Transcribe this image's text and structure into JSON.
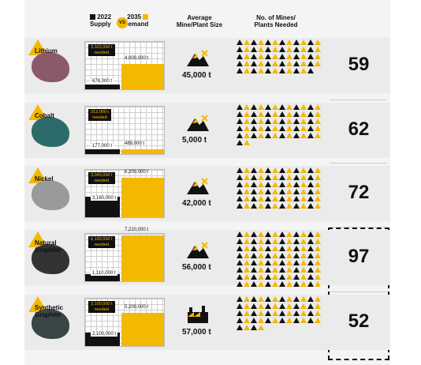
{
  "header": {
    "year_supply": "2022",
    "supply": "Supply",
    "vs": "VS",
    "year_demand": "2035",
    "demand": "Demand",
    "avg_size_line1": "Average",
    "avg_size_line2": "Mine/Plant Size",
    "mines_line1": "No. of Mines/",
    "mines_line2": "Plants Needed"
  },
  "colors": {
    "supply": "#111111",
    "demand": "#f5b800",
    "background": "#ebebeb"
  },
  "chart_data": {
    "type": "bar",
    "categories": [
      "Lithium",
      "Cobalt",
      "Nickel",
      "Natural Graphite",
      "Synthetic Graphite"
    ],
    "series": [
      {
        "name": "2022 Supply",
        "values": [
          678000,
          177000,
          3160000,
          1110000,
          2100000
        ]
      },
      {
        "name": "2035 Demand",
        "values": [
          4000000,
          489000,
          6200000,
          7210000,
          5200000
        ]
      }
    ],
    "needed": [
      3322000,
      312000,
      3040000,
      6100000,
      3100000
    ],
    "avg_mine_size": [
      45000,
      5000,
      42000,
      56000,
      57000
    ],
    "mines_needed": [
      59,
      62,
      72,
      97,
      52
    ]
  },
  "rows": [
    {
      "mineral": "Lithium",
      "needed": "3,322,000 t",
      "needed_word": "needed",
      "supply": "678,000 t",
      "demand": "4,000,000 t",
      "size": "45,000 t",
      "count": "59",
      "icon": "mine-icon",
      "rock": "#8a5a6a"
    },
    {
      "mineral": "Cobalt",
      "needed": "312,000 t",
      "needed_word": "needed",
      "supply": "177,000 t",
      "demand": "489,000 t",
      "size": "5,000 t",
      "count": "62",
      "icon": "mine-icon",
      "rock": "#2d6b6a"
    },
    {
      "mineral": "Nickel",
      "needed": "3,040,000 t",
      "needed_word": "needed",
      "supply": "3,160,000 t",
      "demand": "6,200,000 t",
      "size": "42,000 t",
      "count": "72",
      "icon": "mine-icon",
      "rock": "#9a9a9a"
    },
    {
      "mineral": "Natural Graphite",
      "needed": "6,100,000 t",
      "needed_word": "needed",
      "supply": "1,110,000 t",
      "demand": "7,210,000 t",
      "size": "56,000 t",
      "count": "97",
      "icon": "mine-icon",
      "rock": "#333333"
    },
    {
      "mineral": "Synthetic Graphite",
      "needed": "3,100,000 t",
      "needed_word": "needed",
      "supply": "2,100,000 t",
      "demand": "5,200,000 t",
      "size": "57,000 t",
      "count": "52",
      "icon": "factory-icon",
      "rock": "#3a4548"
    }
  ]
}
